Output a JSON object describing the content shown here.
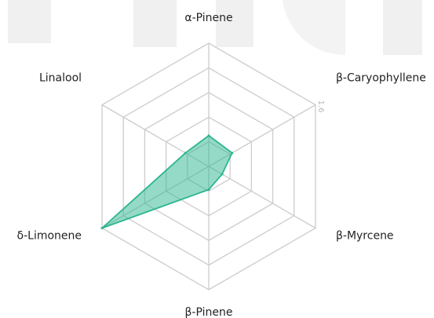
{
  "chart_data": {
    "type": "radar",
    "title": "",
    "axes": [
      "α-Pinene",
      "β-Caryophyllene",
      "β-Myrcene",
      "β-Pinene",
      "δ-Limonene",
      "Linalool"
    ],
    "series": [
      {
        "values": [
          0.4,
          0.35,
          0.2,
          0.3,
          1.6,
          0.35
        ],
        "color": "#2bb58f",
        "fill_opacity": 0.5
      }
    ],
    "rmax": 1.6,
    "ring_count": 5,
    "ticks": [
      {
        "value": 1.6,
        "label": "1.6"
      }
    ],
    "grid": true
  },
  "colors": {
    "grid": "#cccccc",
    "watermark": "#f0f0f0"
  }
}
